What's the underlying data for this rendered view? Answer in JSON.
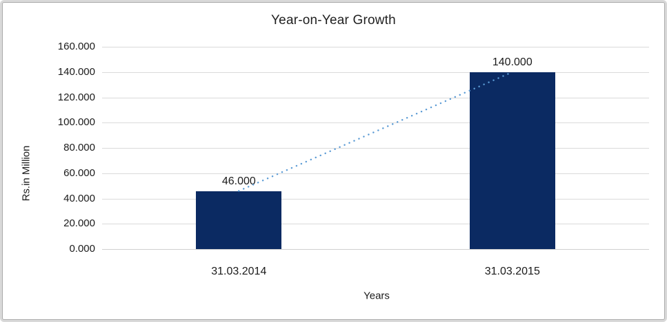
{
  "chart_data": {
    "type": "bar",
    "title": "Year-on-Year Growth",
    "xlabel": "Years",
    "ylabel": "Rs.in Million",
    "categories": [
      "31.03.2014",
      "31.03.2015"
    ],
    "values": [
      46,
      140
    ],
    "value_labels": [
      "46.000",
      "140.000"
    ],
    "ylim": [
      0,
      160
    ],
    "ytick_values": [
      0,
      20,
      40,
      60,
      80,
      100,
      120,
      140,
      160
    ],
    "ytick_labels": [
      "0.000",
      "20.000",
      "40.000",
      "60.000",
      "80.000",
      "100.000",
      "120.000",
      "140.000",
      "160.000"
    ],
    "grid": "horizontal",
    "legend": "none",
    "trendline": {
      "type": "linear",
      "style": "dotted",
      "points": [
        [
          0,
          46
        ],
        [
          1,
          140
        ]
      ]
    },
    "colors": {
      "bar": "#0b2a62",
      "trendline": "#5b9bd5",
      "gridline": "#dadada",
      "axis_line": "#cfcfcf",
      "text": "#1a1a1a"
    }
  }
}
